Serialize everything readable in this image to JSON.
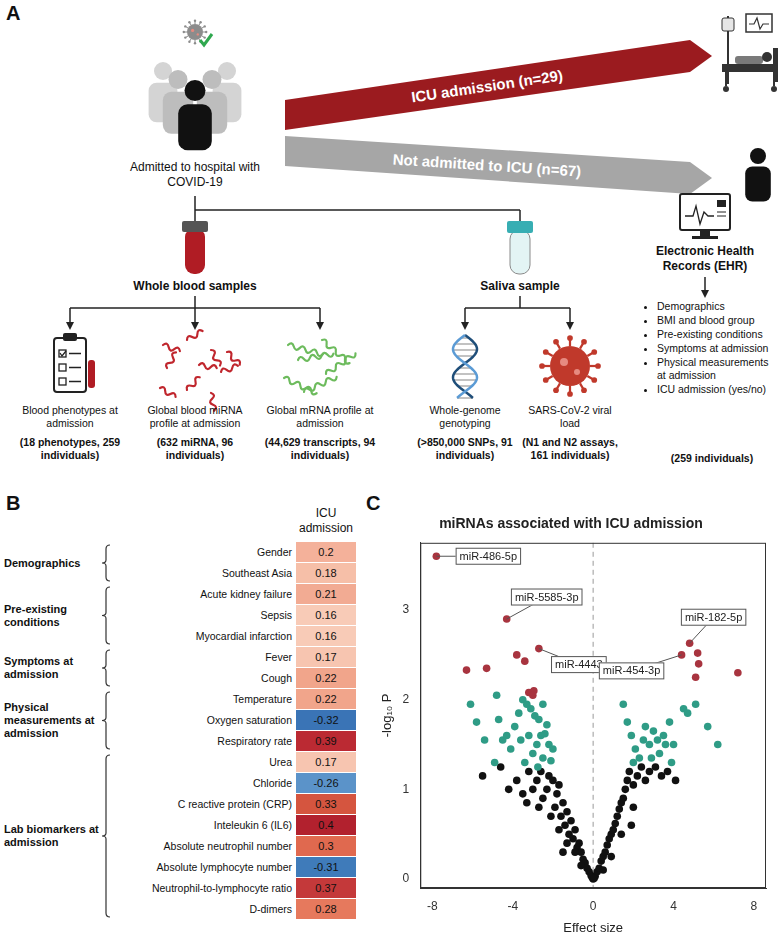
{
  "panel_a": {
    "label": "A",
    "cohort": "Admitted to hospital with COVID-19",
    "outcomes": [
      "ICU admission (n=29)",
      "Not admitted to ICU (n=67)"
    ],
    "sources": [
      {
        "title": "Whole blood samples",
        "assays": [
          {
            "text": "Blood phenotypes at admission",
            "detail": "(18 phenotypes, 259 individuals)"
          },
          {
            "text": "Global blood miRNA profile at admission",
            "detail": "(632 miRNA, 96 individuals)"
          },
          {
            "text": "Global mRNA profile at admission",
            "detail": "(44,629 transcripts, 94 individuals)"
          }
        ]
      },
      {
        "title": "Saliva sample",
        "assays": [
          {
            "text": "Whole-genome genotyping",
            "detail": "(>850,000 SNPs, 91 individuals)"
          },
          {
            "text": "SARS-CoV-2 viral load",
            "detail": "(N1 and N2 assays, 161 individuals)"
          }
        ]
      }
    ],
    "ehr": {
      "title": "Electronic Health Records (EHR)",
      "items": [
        "Demographics",
        "BMI and blood group",
        "Pre-existing conditions",
        "Symptoms at admission",
        "Physical measurements at admission",
        "ICU admission (yes/no)"
      ],
      "detail": "(259 individuals)"
    }
  },
  "panel_b": {
    "label": "B",
    "column": "ICU admission",
    "groups": [
      {
        "name": "Demographics",
        "rows": [
          {
            "label": "Gender",
            "value": 0.2,
            "color": "#f4b19a"
          },
          {
            "label": "Southeast Asia",
            "value": 0.18,
            "color": "#f6bfa8"
          }
        ]
      },
      {
        "name": "Pre-existing conditions",
        "rows": [
          {
            "label": "Acute kidney failure",
            "value": 0.21,
            "color": "#f2ab93"
          },
          {
            "label": "Sepsis",
            "value": 0.16,
            "color": "#f8cbb7"
          },
          {
            "label": "Myocardial infarction",
            "value": 0.16,
            "color": "#f8cbb7"
          }
        ]
      },
      {
        "name": "Symptoms at admission",
        "rows": [
          {
            "label": "Fever",
            "value": 0.17,
            "color": "#f7c5b0"
          },
          {
            "label": "Cough",
            "value": 0.22,
            "color": "#f1a58b"
          }
        ]
      },
      {
        "name": "Physical measurements at admission",
        "rows": [
          {
            "label": "Temperature",
            "value": 0.22,
            "color": "#f1a58b"
          },
          {
            "label": "Oxygen saturation",
            "value": -0.32,
            "color": "#3a74b6"
          },
          {
            "label": "Respiratory rate",
            "value": 0.39,
            "color": "#bb2a33"
          }
        ]
      },
      {
        "name": "Lab biomarkers at admission",
        "rows": [
          {
            "label": "Urea",
            "value": 0.17,
            "color": "#f7c5b0"
          },
          {
            "label": "Chloride",
            "value": -0.26,
            "color": "#5b93c9"
          },
          {
            "label": "C reactive protein (CRP)",
            "value": 0.33,
            "color": "#d5553f"
          },
          {
            "label": "Inteleukin 6 (IL6)",
            "value": 0.4,
            "color": "#b2212e"
          },
          {
            "label": "Absolute neutrophil number",
            "value": 0.3,
            "color": "#e0694f"
          },
          {
            "label": "Absolute lymphocyte number",
            "value": -0.31,
            "color": "#3f7bba"
          },
          {
            "label": "Neutrophil-to-lymphocyte ratio",
            "value": 0.37,
            "color": "#c4393a"
          },
          {
            "label": "D-dimers",
            "value": 0.28,
            "color": "#e6795d"
          }
        ]
      }
    ]
  },
  "panel_c": {
    "label": "C"
  },
  "chart_data": {
    "type": "scatter",
    "title": "miRNAs associated with ICU admission",
    "x_label": "Effect size",
    "y_label": "-log₁₀ P",
    "xlim": [
      -8.6,
      8.6
    ],
    "xticks": [
      -8,
      -4,
      0,
      4,
      8
    ],
    "ylim": [
      -0.1,
      3.75
    ],
    "yticks": [
      0,
      1,
      2,
      3
    ],
    "grid": false,
    "reference_lines": [
      {
        "x": 0,
        "line_style": "dashed"
      }
    ],
    "series": [
      {
        "color": "#a8343f",
        "marker": "circle",
        "x": [
          -7.8,
          -4.3,
          -2.7,
          -6.3,
          -5.3,
          -3.8,
          -3.4,
          -3.2,
          -2.95,
          4.8,
          4.4,
          5.2,
          5.25,
          5.1,
          7.2,
          -3.0
        ],
        "values": [
          3.6,
          2.9,
          2.57,
          2.33,
          2.35,
          2.5,
          2.43,
          2.08,
          2.1,
          2.63,
          2.5,
          2.52,
          2.4,
          2.25,
          2.3,
          2.05
        ]
      },
      {
        "color": "#2f9c86",
        "marker": "circle",
        "x": [
          -5.8,
          -5.4,
          -4.7,
          -4.5,
          -4.9,
          -3.9,
          -3.7,
          -3.5,
          -3.3,
          -3.1,
          -2.9,
          -2.7,
          -2.6,
          -2.8,
          -3.0,
          -2.5,
          -2.3,
          -2.2,
          -2.5,
          -3.2,
          -4.1,
          -6.1,
          -4.8,
          -3.6,
          -2.4,
          -2.0,
          -2.1,
          -3.4,
          -2.75,
          -4.3,
          1.5,
          1.7,
          1.9,
          2.1,
          2.3,
          2.5,
          2.6,
          2.8,
          3.0,
          3.2,
          3.3,
          3.5,
          3.6,
          3.8,
          3.9,
          4.5,
          4.7,
          5.1,
          5.7,
          6.2,
          4.0,
          2.9,
          2.0
        ],
        "values": [
          1.75,
          1.55,
          1.78,
          1.55,
          1.3,
          1.7,
          1.85,
          2.0,
          1.95,
          1.9,
          1.82,
          1.78,
          1.6,
          1.5,
          1.4,
          1.35,
          1.72,
          1.5,
          1.95,
          1.6,
          1.45,
          1.95,
          2.05,
          1.55,
          1.62,
          1.45,
          1.32,
          1.3,
          1.25,
          1.6,
          1.95,
          1.75,
          1.6,
          1.45,
          1.35,
          1.55,
          1.7,
          1.5,
          1.65,
          1.55,
          1.4,
          1.6,
          1.5,
          1.75,
          1.3,
          1.9,
          1.85,
          1.95,
          1.7,
          1.5,
          1.5,
          1.35,
          1.3
        ]
      },
      {
        "color": "#111111",
        "marker": "circle",
        "x": [
          -5.5,
          -4.6,
          -4.2,
          -3.8,
          -3.5,
          -3.2,
          -3.0,
          -2.8,
          -2.6,
          -2.5,
          -2.3,
          -2.2,
          -2.0,
          -1.9,
          -1.8,
          -1.7,
          -1.6,
          -1.5,
          -1.4,
          -1.3,
          -1.2,
          -1.1,
          -1.0,
          -0.9,
          -0.8,
          -0.7,
          -0.6,
          -0.5,
          -0.4,
          -0.3,
          -0.2,
          -0.1,
          -1.3,
          -0.9,
          -2.1,
          -1.7,
          -2.7,
          -3.3,
          -0.6,
          -1.5,
          0.1,
          0.2,
          0.3,
          0.4,
          0.5,
          0.6,
          0.7,
          0.8,
          0.9,
          1.0,
          1.1,
          1.2,
          1.3,
          1.4,
          1.5,
          1.6,
          1.7,
          1.8,
          2.0,
          2.2,
          2.4,
          2.6,
          2.8,
          3.1,
          3.4,
          3.7,
          4.1,
          0.9,
          1.4,
          2.0,
          0.5,
          1.9,
          0.0,
          -0.05,
          0.05
        ],
        "values": [
          1.15,
          1.25,
          1.0,
          1.1,
          0.95,
          1.2,
          1.0,
          1.1,
          1.2,
          0.9,
          1.0,
          1.15,
          1.1,
          0.8,
          0.95,
          1.05,
          0.7,
          0.85,
          0.6,
          0.75,
          0.5,
          0.65,
          0.45,
          0.55,
          0.35,
          0.4,
          0.3,
          0.22,
          0.18,
          0.12,
          0.08,
          0.04,
          0.4,
          0.3,
          0.7,
          0.55,
          0.8,
          0.85,
          0.15,
          0.3,
          0.03,
          0.08,
          0.12,
          0.2,
          0.25,
          0.3,
          0.38,
          0.45,
          0.5,
          0.55,
          0.62,
          0.7,
          0.78,
          0.85,
          0.9,
          1.0,
          1.1,
          1.2,
          1.05,
          1.15,
          1.25,
          1.1,
          1.2,
          1.25,
          1.15,
          1.2,
          1.1,
          0.25,
          0.5,
          0.8,
          0.1,
          0.6,
          0.0,
          0.02,
          0.01
        ]
      }
    ],
    "annotations": [
      {
        "text": "miR-486-5p",
        "x": -7.8,
        "y": 3.6
      },
      {
        "text": "miR-5585-3p",
        "x": -4.3,
        "y": 2.9
      },
      {
        "text": "miR-4443",
        "x": -2.7,
        "y": 2.57
      },
      {
        "text": "miR-182-5p",
        "x": 4.8,
        "y": 2.63
      },
      {
        "text": "miR-454-3p",
        "x": 4.4,
        "y": 2.5
      }
    ]
  }
}
